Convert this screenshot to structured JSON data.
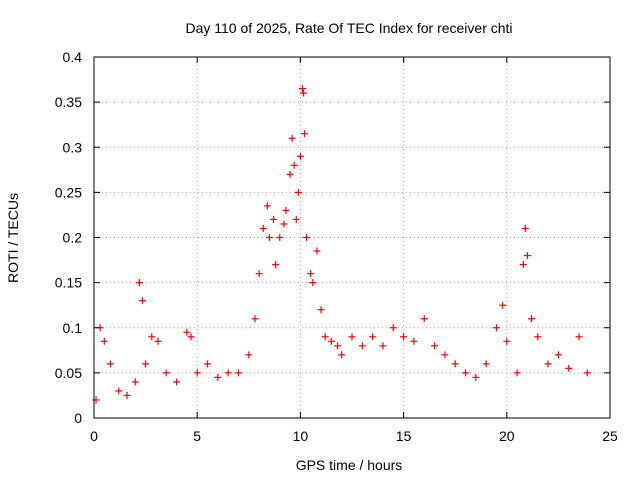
{
  "chart_data": {
    "type": "scatter",
    "title": "Day 110 of 2025, Rate Of TEC Index for receiver chti",
    "xlabel": "GPS time / hours",
    "ylabel": "ROTI / TECUs",
    "xlim": [
      0,
      25
    ],
    "ylim": [
      0,
      0.4
    ],
    "x_ticks": [
      0,
      5,
      10,
      15,
      20,
      25
    ],
    "y_ticks": [
      0,
      0.05,
      0.1,
      0.15,
      0.2,
      0.25,
      0.3,
      0.35,
      0.4
    ],
    "x_tick_labels": [
      "0",
      "5",
      "10",
      "15",
      "20",
      "25"
    ],
    "y_tick_labels": [
      "0",
      "0.05",
      "0.1",
      "0.15",
      "0.2",
      "0.25",
      "0.3",
      "0.35",
      "0.4"
    ],
    "grid": true,
    "marker": "plus",
    "marker_color": "#ff0000",
    "legend": "none",
    "series": [
      {
        "x": [
          0.1,
          0.3,
          0.5,
          0.8,
          1.2,
          1.6,
          2.0,
          2.2,
          2.35,
          2.5,
          2.8,
          3.1,
          3.5,
          4.0,
          4.5,
          4.7,
          5.0,
          5.5,
          6.0,
          6.5,
          7.0,
          7.5,
          7.8,
          8.0,
          8.2,
          8.4,
          8.5,
          8.7,
          8.8,
          9.0,
          9.2,
          9.3,
          9.5,
          9.6,
          9.7,
          9.8,
          9.9,
          10.0,
          10.1,
          10.15,
          10.2,
          10.3,
          10.5,
          10.6,
          10.8,
          11.0,
          11.2,
          11.5,
          11.8,
          12.0,
          12.5,
          13.0,
          13.5,
          14.0,
          14.5,
          15.0,
          15.5,
          16.0,
          16.5,
          17.0,
          17.5,
          18.0,
          18.5,
          19.0,
          19.5,
          19.8,
          20.0,
          20.5,
          20.8,
          20.9,
          21.0,
          21.2,
          21.5,
          22.0,
          22.5,
          23.0,
          23.5,
          23.9
        ],
        "y": [
          0.02,
          0.1,
          0.085,
          0.06,
          0.03,
          0.025,
          0.04,
          0.15,
          0.13,
          0.06,
          0.09,
          0.085,
          0.05,
          0.04,
          0.095,
          0.09,
          0.05,
          0.06,
          0.045,
          0.05,
          0.05,
          0.07,
          0.11,
          0.16,
          0.21,
          0.235,
          0.2,
          0.22,
          0.17,
          0.2,
          0.215,
          0.23,
          0.27,
          0.31,
          0.28,
          0.22,
          0.25,
          0.29,
          0.365,
          0.36,
          0.315,
          0.2,
          0.16,
          0.15,
          0.185,
          0.12,
          0.09,
          0.085,
          0.08,
          0.07,
          0.09,
          0.08,
          0.09,
          0.08,
          0.1,
          0.09,
          0.085,
          0.11,
          0.08,
          0.07,
          0.06,
          0.05,
          0.045,
          0.06,
          0.1,
          0.125,
          0.085,
          0.05,
          0.17,
          0.21,
          0.18,
          0.11,
          0.09,
          0.06,
          0.07,
          0.055,
          0.09,
          0.05
        ]
      }
    ]
  }
}
